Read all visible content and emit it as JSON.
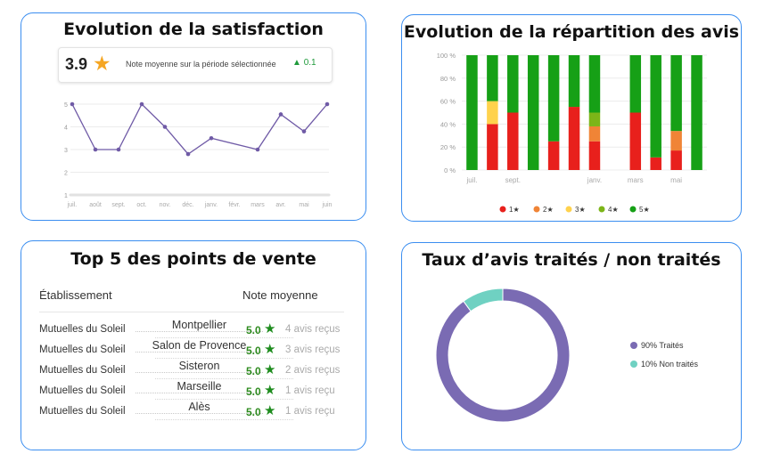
{
  "satisfaction": {
    "title": "Evolution de la satisfaction",
    "average": "3.9",
    "average_label": "Note moyenne sur la période sélectionnée",
    "delta": "0.1",
    "colors": {
      "line": "#6f5aa6",
      "star": "#f5a623",
      "delta": "#1f9a3b"
    }
  },
  "repartition": {
    "title": "Evolution de la répartition des avis",
    "colors": {
      "1★": "#e8201c",
      "2★": "#f08436",
      "3★": "#ffd24d",
      "4★": "#7cb518",
      "5★": "#16a016"
    }
  },
  "top": {
    "title": "Top 5 des points de vente",
    "col_establishment": "Établissement",
    "col_rating": "Note moyenne",
    "rows": [
      {
        "name": "Mutuelles du Soleil",
        "city": "Montpellier",
        "score": "5.0",
        "count": "4 avis reçus"
      },
      {
        "name": "Mutuelles du Soleil",
        "city": "Salon de Provence",
        "score": "5.0",
        "count": "3 avis reçus"
      },
      {
        "name": "Mutuelles du Soleil",
        "city": "Sisteron",
        "score": "5.0",
        "count": "2 avis reçus"
      },
      {
        "name": "Mutuelles du Soleil",
        "city": "Marseille",
        "score": "5.0",
        "count": "1 avis reçu"
      },
      {
        "name": "Mutuelles du Soleil",
        "city": "Alès",
        "score": "5.0",
        "count": "1 avis reçu"
      }
    ]
  },
  "taux": {
    "title": "Taux d’avis traités / non traités"
  },
  "chart_data": [
    {
      "type": "line",
      "x": [
        "juil.",
        "août",
        "sept.",
        "oct.",
        "nov.",
        "déc.",
        "janv.",
        "févr.",
        "mars",
        "avr.",
        "mai",
        "juin"
      ],
      "series": [
        {
          "values": [
            5,
            3,
            3,
            5,
            4,
            2.8,
            3.5,
            null,
            3,
            4.55,
            3.8,
            5
          ]
        }
      ],
      "y_ticks": [
        "1",
        "2",
        "3",
        "4",
        "5"
      ],
      "ylim": [
        1,
        5
      ],
      "grid": true
    },
    {
      "type": "bar",
      "stacked": true,
      "categories": [
        "juil.",
        "août",
        "sept.",
        "oct.",
        "nov.",
        "déc.",
        "janv.",
        "févr.",
        "mars",
        "avr.",
        "mai",
        "juin"
      ],
      "x_tick_labels": [
        "juil.",
        "",
        "sept.",
        "",
        "",
        "",
        "janv.",
        "",
        "mars",
        "",
        "mai",
        ""
      ],
      "series": [
        {
          "name": "1★",
          "values": [
            0,
            40,
            50,
            0,
            25,
            55,
            25,
            0,
            50,
            11,
            17,
            0
          ]
        },
        {
          "name": "2★",
          "values": [
            0,
            0,
            0,
            0,
            0,
            0,
            13,
            0,
            0,
            0,
            17,
            0
          ]
        },
        {
          "name": "3★",
          "values": [
            0,
            20,
            0,
            0,
            0,
            0,
            0,
            0,
            0,
            0,
            0,
            0
          ]
        },
        {
          "name": "4★",
          "values": [
            0,
            0,
            0,
            0,
            0,
            0,
            12,
            0,
            0,
            0,
            0,
            0
          ]
        },
        {
          "name": "5★",
          "values": [
            100,
            40,
            50,
            100,
            75,
            45,
            50,
            0,
            50,
            89,
            66,
            100
          ]
        }
      ],
      "y_ticks": [
        "0 %",
        "20 %",
        "40 %",
        "60 %",
        "80 %",
        "100 %"
      ],
      "ylim": [
        0,
        100
      ],
      "grid": true,
      "legend_position": "bottom"
    },
    {
      "type": "pie",
      "donut": true,
      "categories": [
        "Traités",
        "Non traités"
      ],
      "values": [
        90,
        10
      ],
      "labels": [
        "90% Traités",
        "10% Non traités"
      ],
      "colors": [
        "#7a6bb3",
        "#6fd1c2"
      ],
      "legend_position": "right"
    }
  ]
}
